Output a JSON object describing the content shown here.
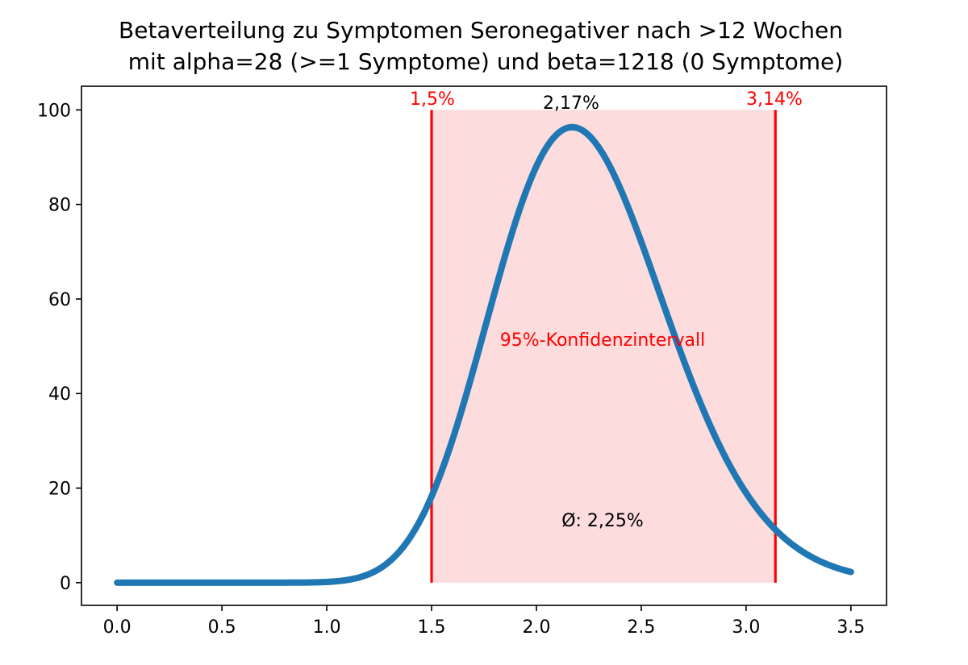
{
  "chart_data": {
    "type": "line",
    "title_line1": "Betaverteilung zu Symptomen Seronegativer nach >12 Wochen",
    "title_line2": "mit alpha=28 (>=1 Symptome) und beta=1218 (0 Symptome)",
    "xlabel": "",
    "ylabel": "",
    "xlim": [
      -0.17,
      3.67
    ],
    "ylim": [
      -4.8,
      105
    ],
    "xticks": [
      "0.0",
      "0.5",
      "1.0",
      "1.5",
      "2.0",
      "2.5",
      "3.0",
      "3.5"
    ],
    "yticks": [
      "0",
      "20",
      "40",
      "60",
      "80",
      "100"
    ],
    "grid": false,
    "series": [
      {
        "color": "#1f77b4",
        "distribution": {
          "alpha": 28,
          "beta": 1218
        },
        "x_range": [
          0,
          3.5
        ]
      }
    ],
    "interval": {
      "low": 1.5,
      "high": 3.14,
      "height": 100,
      "fill_color": "#fcdcdc",
      "line_color": "#ff0000",
      "label_low": "1,5%",
      "label_high": "3,14%",
      "label_center": "95%-Konfidenzintervall"
    },
    "mode": {
      "x": 2.17,
      "label": "2,17%"
    },
    "mean": {
      "label": "Ø: 2,25%"
    }
  }
}
